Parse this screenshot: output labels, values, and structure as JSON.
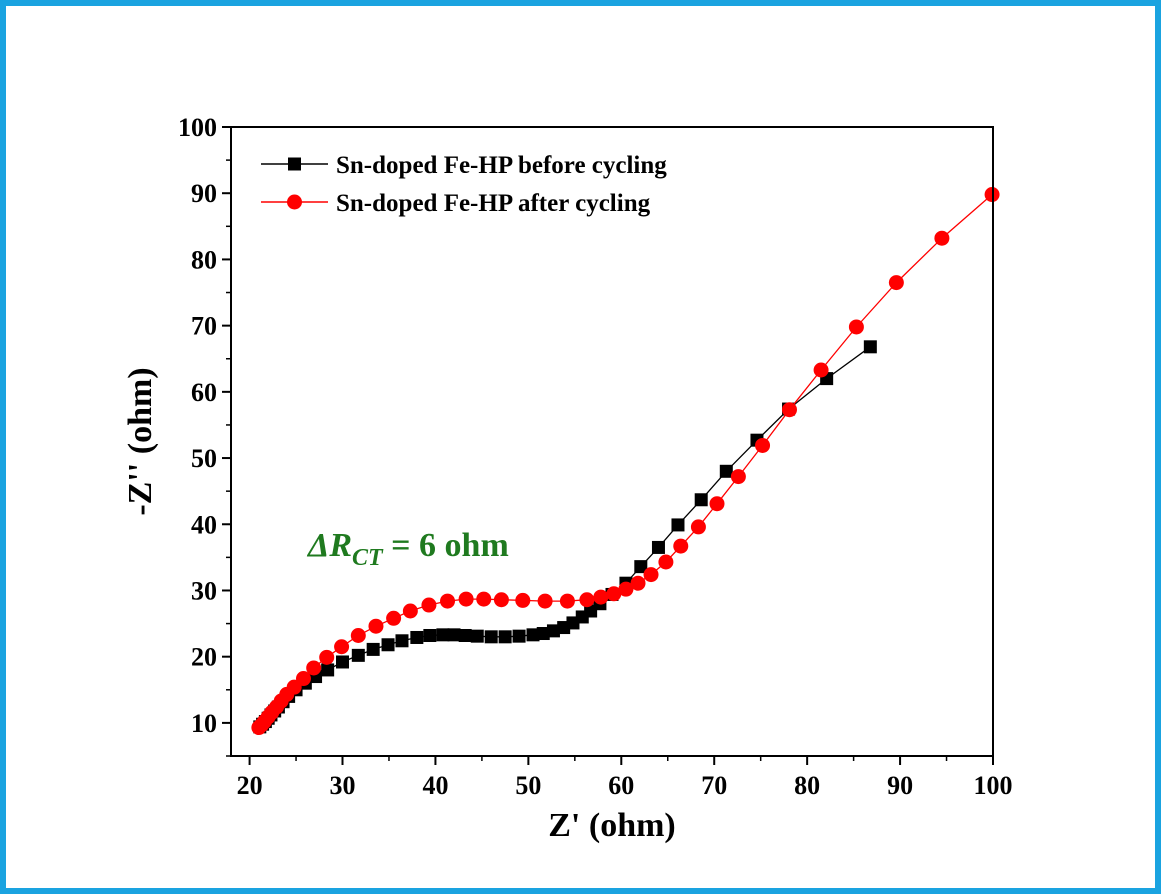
{
  "chart_data": {
    "type": "line",
    "xlabel": "Z' (ohm)",
    "ylabel": "-Z'' (ohm)",
    "xlim": [
      18,
      100
    ],
    "ylim": [
      5,
      100
    ],
    "xticks": [
      20,
      30,
      40,
      50,
      60,
      70,
      80,
      90,
      100
    ],
    "yticks": [
      10,
      20,
      30,
      40,
      50,
      60,
      70,
      80,
      90,
      100
    ],
    "legend_position": "top-left",
    "annotation": {
      "delta": "ΔR",
      "subscript": "CT",
      "rest": " = 6 ohm",
      "color": "#1f7a1f"
    },
    "series": [
      {
        "name": "Sn-doped Fe-HP before cycling",
        "color": "#000000",
        "marker": "square",
        "x": [
          21.1,
          21.4,
          21.7,
          22.0,
          22.3,
          22.7,
          23.1,
          23.6,
          24.2,
          25.0,
          26.0,
          27.1,
          28.4,
          30.0,
          31.7,
          33.3,
          34.9,
          36.4,
          38.0,
          39.4,
          40.8,
          42.0,
          43.2,
          44.5,
          46.0,
          47.5,
          49.0,
          50.5,
          51.6,
          52.7,
          53.8,
          54.8,
          55.8,
          56.7,
          57.7,
          59.0,
          60.5,
          62.1,
          64.0,
          66.1,
          68.6,
          71.3,
          74.6,
          78.0,
          82.1,
          86.8
        ],
        "y": [
          9.4,
          9.8,
          10.2,
          10.7,
          11.2,
          11.8,
          12.4,
          13.2,
          14.0,
          15.0,
          16.0,
          17.0,
          18.0,
          19.2,
          20.2,
          21.1,
          21.8,
          22.4,
          22.9,
          23.2,
          23.3,
          23.3,
          23.2,
          23.1,
          23.0,
          23.0,
          23.1,
          23.3,
          23.5,
          23.9,
          24.4,
          25.1,
          26.0,
          26.9,
          28.0,
          29.4,
          31.1,
          33.6,
          36.5,
          39.9,
          43.7,
          48.0,
          52.7,
          57.4,
          62.0,
          66.8
        ]
      },
      {
        "name": "Sn-doped Fe-HP after cycling",
        "color": "#ff0000",
        "marker": "circle",
        "x": [
          21.0,
          21.3,
          21.6,
          22.0,
          22.4,
          22.9,
          23.4,
          24.0,
          24.8,
          25.8,
          26.9,
          28.3,
          29.9,
          31.7,
          33.6,
          35.5,
          37.3,
          39.3,
          41.3,
          43.3,
          45.2,
          47.1,
          49.4,
          51.8,
          54.2,
          56.3,
          57.8,
          59.2,
          60.5,
          61.8,
          63.2,
          64.8,
          66.4,
          68.3,
          70.3,
          72.6,
          75.2,
          78.1,
          81.5,
          85.3,
          89.6,
          94.5,
          99.9
        ],
        "y": [
          9.3,
          9.7,
          10.2,
          10.9,
          11.6,
          12.4,
          13.3,
          14.3,
          15.4,
          16.7,
          18.3,
          19.9,
          21.5,
          23.2,
          24.6,
          25.8,
          26.9,
          27.8,
          28.4,
          28.7,
          28.7,
          28.6,
          28.5,
          28.4,
          28.4,
          28.6,
          29.0,
          29.5,
          30.2,
          31.1,
          32.4,
          34.3,
          36.7,
          39.6,
          43.1,
          47.2,
          51.9,
          57.3,
          63.3,
          69.8,
          76.5,
          83.2,
          89.8
        ]
      }
    ]
  }
}
